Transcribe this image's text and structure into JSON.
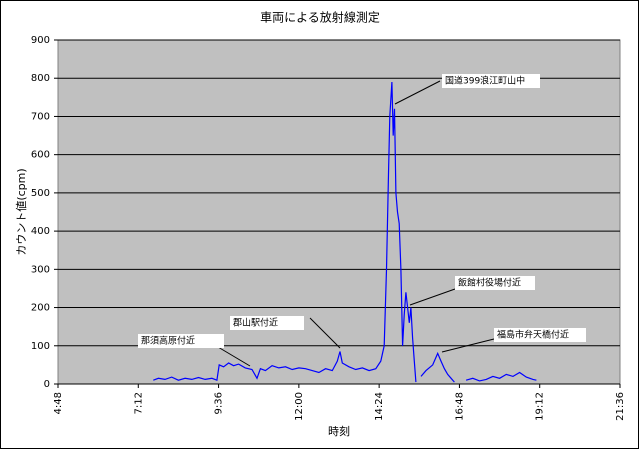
{
  "chart_data": {
    "type": "line",
    "title": "車両による放射線測定",
    "x_label": "時刻",
    "y_label": "カウント値(cpm)",
    "x": [
      7.65,
      7.8,
      8.0,
      8.2,
      8.4,
      8.6,
      8.8,
      9.0,
      9.2,
      9.4,
      9.55,
      9.62,
      9.75,
      9.9,
      10.05,
      10.2,
      10.4,
      10.6,
      10.75,
      10.85,
      11.0,
      11.2,
      11.4,
      11.6,
      11.8,
      12.0,
      12.2,
      12.4,
      12.6,
      12.8,
      13.0,
      13.15,
      13.23,
      13.3,
      13.5,
      13.7,
      13.9,
      14.1,
      14.3,
      14.45,
      14.55,
      14.62,
      14.68,
      14.72,
      14.78,
      14.82,
      14.86,
      14.9,
      14.95,
      15.0,
      15.05,
      15.1,
      15.15,
      15.2,
      15.25,
      15.3,
      15.35,
      15.4,
      15.45,
      15.5,
      15.55,
      15.65,
      15.8,
      16.0,
      16.15,
      16.25,
      16.35,
      16.45,
      16.55,
      16.65,
      16.7,
      17.0,
      17.2,
      17.4,
      17.6,
      17.8,
      18.0,
      18.2,
      18.4,
      18.6,
      18.8,
      19.0,
      19.1
    ],
    "series": [
      {
        "color": "#0000ff",
        "values": [
          10,
          15,
          12,
          18,
          10,
          15,
          12,
          17,
          12,
          15,
          10,
          50,
          45,
          55,
          48,
          52,
          42,
          38,
          15,
          40,
          35,
          48,
          42,
          45,
          38,
          42,
          40,
          35,
          30,
          40,
          35,
          60,
          85,
          55,
          45,
          38,
          42,
          35,
          40,
          60,
          100,
          300,
          550,
          700,
          790,
          650,
          720,
          500,
          450,
          420,
          300,
          100,
          180,
          240,
          200,
          160,
          200,
          120,
          60,
          5,
          null,
          20,
          35,
          50,
          80,
          60,
          40,
          25,
          15,
          5,
          null,
          10,
          15,
          8,
          12,
          20,
          15,
          25,
          20,
          30,
          18,
          12,
          10
        ]
      }
    ],
    "xlim": [
      4.8,
      21.6
    ],
    "xticks": [
      {
        "value": 4.8,
        "label": "4:48"
      },
      {
        "value": 7.2,
        "label": "7:12"
      },
      {
        "value": 9.6,
        "label": "9:36"
      },
      {
        "value": 12,
        "label": "12:00"
      },
      {
        "value": 14.4,
        "label": "14:24"
      },
      {
        "value": 16.8,
        "label": "16:48"
      },
      {
        "value": 19.2,
        "label": "19:12"
      },
      {
        "value": 21.6,
        "label": "21:36"
      }
    ],
    "ylim": [
      0,
      900
    ],
    "yticks": [
      0,
      100,
      200,
      300,
      400,
      500,
      600,
      700,
      800,
      900
    ],
    "grid": true,
    "annotations": [
      "国道399浪江町山中",
      "飯館村役場付近",
      "福島市弁天橋付近",
      "郡山駅付近",
      "那須高原付近"
    ]
  }
}
